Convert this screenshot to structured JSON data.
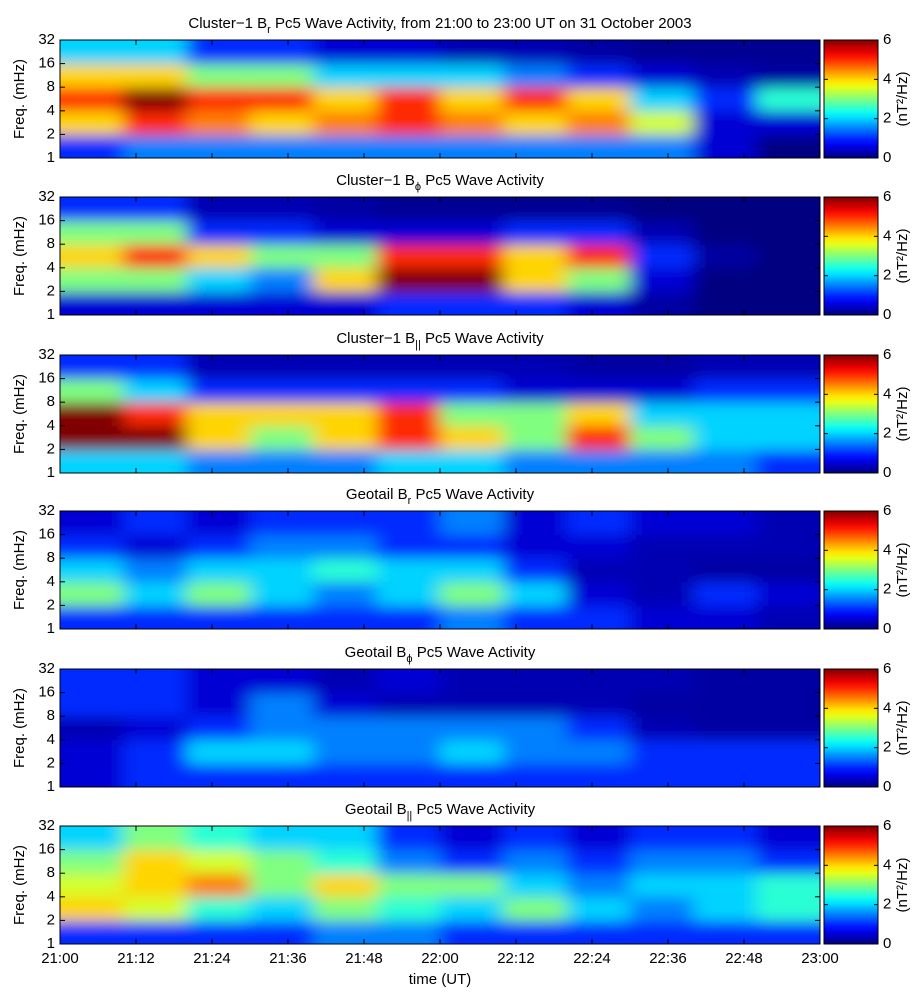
{
  "chart_data": [
    {
      "type": "heatmap",
      "title": "Cluster−1 B",
      "title_subscript": "r",
      "title_rest": " Pc5 Wave Activity, from 21:00 to 23:00 UT on 31 October 2003",
      "ylabel": "Freq. (mHz)",
      "colorbar_label": "(nT²/Hz)",
      "colormap": "jet",
      "clim": [
        0,
        6
      ],
      "cticks": [
        0,
        2,
        4,
        6
      ],
      "xlim": [
        0,
        120
      ],
      "xticks": [
        0,
        12,
        24,
        36,
        48,
        60,
        72,
        84,
        96,
        108,
        120
      ],
      "ylim": [
        1,
        32
      ],
      "yscale": "log2",
      "yticks": [
        1,
        2,
        4,
        8,
        16,
        32
      ],
      "x": [
        5,
        15,
        25,
        35,
        45,
        55,
        65,
        75,
        85,
        95,
        105,
        115
      ],
      "y": [
        1.4,
        2.8,
        5.7,
        11.3,
        22.6
      ],
      "z": [
        [
          1,
          1.5,
          1.5,
          1.5,
          1.5,
          1.5,
          1.5,
          1.5,
          1.5,
          1.5,
          0.5,
          0
        ],
        [
          4,
          5,
          4.5,
          4,
          4.5,
          5,
          4.5,
          4,
          4.5,
          3.5,
          0.5,
          0.5
        ],
        [
          5,
          6,
          5,
          5,
          4,
          5,
          4,
          5,
          4,
          2,
          1,
          2.5
        ],
        [
          4,
          4,
          3,
          3,
          2,
          2,
          2,
          1.5,
          1,
          0.5,
          0.3,
          0.2
        ],
        [
          2,
          2,
          1,
          1,
          0.5,
          0.5,
          0.3,
          0.3,
          0.2,
          0.1,
          0.1,
          0.1
        ]
      ]
    },
    {
      "type": "heatmap",
      "title": "Cluster−1 B",
      "title_subscript": "ϕ",
      "title_rest": " Pc5 Wave Activity",
      "ylabel": "Freq. (mHz)",
      "colorbar_label": "(nT²/Hz)",
      "colormap": "jet",
      "clim": [
        0,
        6
      ],
      "cticks": [
        0,
        2,
        4,
        6
      ],
      "xlim": [
        0,
        120
      ],
      "xticks": [
        0,
        12,
        24,
        36,
        48,
        60,
        72,
        84,
        96,
        108,
        120
      ],
      "ylim": [
        1,
        32
      ],
      "yscale": "log2",
      "yticks": [
        1,
        2,
        4,
        8,
        16,
        32
      ],
      "x": [
        5,
        15,
        25,
        35,
        45,
        55,
        65,
        75,
        85,
        95,
        105,
        115
      ],
      "y": [
        1.4,
        2.8,
        5.7,
        11.3,
        22.6
      ],
      "z": [
        [
          0.5,
          0.5,
          0.5,
          0.5,
          0.5,
          1,
          1,
          1,
          0.5,
          0.2,
          0,
          0
        ],
        [
          3,
          3,
          2,
          1.5,
          4,
          6,
          6,
          4,
          3,
          0.5,
          0,
          0
        ],
        [
          4,
          5,
          4,
          3,
          3,
          5,
          5,
          4,
          5,
          1,
          0.2,
          0
        ],
        [
          3,
          3,
          1,
          1,
          0.5,
          0.5,
          0.5,
          1,
          1,
          0.3,
          0,
          0
        ],
        [
          1,
          1,
          0.3,
          0.3,
          0.2,
          0.1,
          0.1,
          0.1,
          0.1,
          0,
          0,
          0
        ]
      ]
    },
    {
      "type": "heatmap",
      "title": "Cluster−1 B",
      "title_subscript": "||",
      "title_rest": " Pc5 Wave Activity",
      "ylabel": "Freq. (mHz)",
      "colorbar_label": "(nT²/Hz)",
      "colormap": "jet",
      "clim": [
        0,
        6
      ],
      "cticks": [
        0,
        2,
        4,
        6
      ],
      "xlim": [
        0,
        120
      ],
      "xticks": [
        0,
        12,
        24,
        36,
        48,
        60,
        72,
        84,
        96,
        108,
        120
      ],
      "ylim": [
        1,
        32
      ],
      "yscale": "log2",
      "yticks": [
        1,
        2,
        4,
        8,
        16,
        32
      ],
      "x": [
        5,
        15,
        25,
        35,
        45,
        55,
        65,
        75,
        85,
        95,
        105,
        115
      ],
      "y": [
        1.4,
        2.8,
        5.7,
        11.3,
        22.6
      ],
      "z": [
        [
          2,
          2,
          1.5,
          1.5,
          1.5,
          2,
          2,
          1.5,
          1.5,
          1.5,
          1.5,
          1
        ],
        [
          6,
          6,
          4,
          3,
          4,
          5,
          4,
          3,
          5,
          3,
          2,
          2
        ],
        [
          6,
          5,
          4,
          4,
          4,
          5,
          3,
          3,
          4,
          2,
          2,
          2
        ],
        [
          3,
          2,
          1,
          1,
          1,
          1,
          1,
          0.5,
          0.5,
          0.5,
          1,
          1
        ],
        [
          1,
          1,
          0.3,
          0.3,
          0.3,
          0.3,
          0.3,
          0.3,
          0.2,
          0.2,
          0.3,
          0.3
        ]
      ]
    },
    {
      "type": "heatmap",
      "title": "Geotail B",
      "title_subscript": "r",
      "title_rest": " Pc5 Wave Activity",
      "ylabel": "Freq. (mHz)",
      "colorbar_label": "(nT²/Hz)",
      "colormap": "jet",
      "clim": [
        0,
        6
      ],
      "cticks": [
        0,
        2,
        4,
        6
      ],
      "xlim": [
        0,
        120
      ],
      "xticks": [
        0,
        12,
        24,
        36,
        48,
        60,
        72,
        84,
        96,
        108,
        120
      ],
      "ylim": [
        1,
        32
      ],
      "yscale": "log2",
      "yticks": [
        1,
        2,
        4,
        8,
        16,
        32
      ],
      "x": [
        5,
        15,
        25,
        35,
        45,
        55,
        65,
        75,
        85,
        95,
        105,
        115
      ],
      "y": [
        1.4,
        2.8,
        5.7,
        11.3,
        22.6
      ],
      "z": [
        [
          1,
          1,
          1,
          1,
          1,
          1,
          1.5,
          1,
          1,
          0.5,
          0.5,
          0.3
        ],
        [
          3,
          2,
          3,
          2,
          1.5,
          2,
          3,
          2,
          0.5,
          0.3,
          1,
          0.5
        ],
        [
          2,
          1.5,
          2,
          2,
          2.5,
          2,
          2,
          1,
          0.3,
          0.3,
          0.2,
          0.2
        ],
        [
          1,
          0.5,
          1,
          1.5,
          1.5,
          1,
          1,
          0.5,
          0.5,
          0.3,
          0.3,
          0.3
        ],
        [
          0.5,
          1,
          0.5,
          1,
          1,
          1,
          1.5,
          0.5,
          1,
          0.5,
          0.5,
          0.3
        ]
      ]
    },
    {
      "type": "heatmap",
      "title": "Geotail B",
      "title_subscript": "ϕ",
      "title_rest": " Pc5 Wave Activity",
      "ylabel": "Freq. (mHz)",
      "colorbar_label": "(nT²/Hz)",
      "colormap": "jet",
      "clim": [
        0,
        6
      ],
      "cticks": [
        0,
        2,
        4,
        6
      ],
      "xlim": [
        0,
        120
      ],
      "xticks": [
        0,
        12,
        24,
        36,
        48,
        60,
        72,
        84,
        96,
        108,
        120
      ],
      "ylim": [
        1,
        32
      ],
      "yscale": "log2",
      "yticks": [
        1,
        2,
        4,
        8,
        16,
        32
      ],
      "x": [
        5,
        15,
        25,
        35,
        45,
        55,
        65,
        75,
        85,
        95,
        105,
        115
      ],
      "y": [
        1.4,
        2.8,
        5.7,
        11.3,
        22.6
      ],
      "z": [
        [
          0.5,
          1,
          1,
          1,
          1,
          1,
          1,
          1,
          1,
          1,
          1,
          1
        ],
        [
          0.5,
          1,
          2,
          2,
          1.5,
          1.5,
          2,
          1.5,
          1.5,
          1,
          1,
          1
        ],
        [
          0.3,
          0.5,
          1,
          1.5,
          1.5,
          1.5,
          1.5,
          1.5,
          1,
          0.3,
          0.2,
          0.2
        ],
        [
          1,
          1,
          0.5,
          1.5,
          0.5,
          0.3,
          0.3,
          0.3,
          0.3,
          0.2,
          0.2,
          0.2
        ],
        [
          1,
          1,
          0.5,
          0.5,
          0.3,
          0.5,
          0.3,
          0.3,
          0.3,
          0.3,
          0.2,
          0.2
        ]
      ]
    },
    {
      "type": "heatmap",
      "title": "Geotail B",
      "title_subscript": "||",
      "title_rest": " Pc5 Wave Activity",
      "ylabel": "Freq. (mHz)",
      "xlabel": "time (UT)",
      "colorbar_label": "(nT²/Hz)",
      "colormap": "jet",
      "clim": [
        0,
        6
      ],
      "cticks": [
        0,
        2,
        4,
        6
      ],
      "xlim": [
        0,
        120
      ],
      "xticks": [
        {
          "value": 0,
          "label": "21:00"
        },
        {
          "value": 12,
          "label": "21:12"
        },
        {
          "value": 24,
          "label": "21:24"
        },
        {
          "value": 36,
          "label": "21:36"
        },
        {
          "value": 48,
          "label": "21:48"
        },
        {
          "value": 60,
          "label": "22:00"
        },
        {
          "value": 72,
          "label": "22:12"
        },
        {
          "value": 84,
          "label": "22:24"
        },
        {
          "value": 96,
          "label": "22:36"
        },
        {
          "value": 108,
          "label": "22:48"
        },
        {
          "value": 120,
          "label": "23:00"
        }
      ],
      "ylim": [
        1,
        32
      ],
      "yscale": "log2",
      "yticks": [
        1,
        2,
        4,
        8,
        16,
        32
      ],
      "x": [
        5,
        15,
        25,
        35,
        45,
        55,
        65,
        75,
        85,
        95,
        105,
        115
      ],
      "y": [
        1.4,
        2.8,
        5.7,
        11.3,
        22.6
      ],
      "z": [
        [
          1,
          1,
          1,
          1,
          1.5,
          1.5,
          1,
          1,
          1,
          1,
          1,
          1
        ],
        [
          4,
          3.5,
          2.5,
          2,
          3,
          2.5,
          2,
          3,
          2,
          1.5,
          2,
          2.5
        ],
        [
          3.5,
          4,
          4.5,
          3,
          4,
          3,
          3,
          2,
          1.5,
          2,
          2,
          2.5
        ],
        [
          3,
          4,
          3.5,
          3,
          2.5,
          1.5,
          1,
          1.5,
          1,
          1.5,
          1.5,
          1
        ],
        [
          2,
          3,
          2.5,
          2,
          2,
          1,
          0.5,
          1,
          0.5,
          1,
          1,
          0.5
        ]
      ]
    }
  ]
}
